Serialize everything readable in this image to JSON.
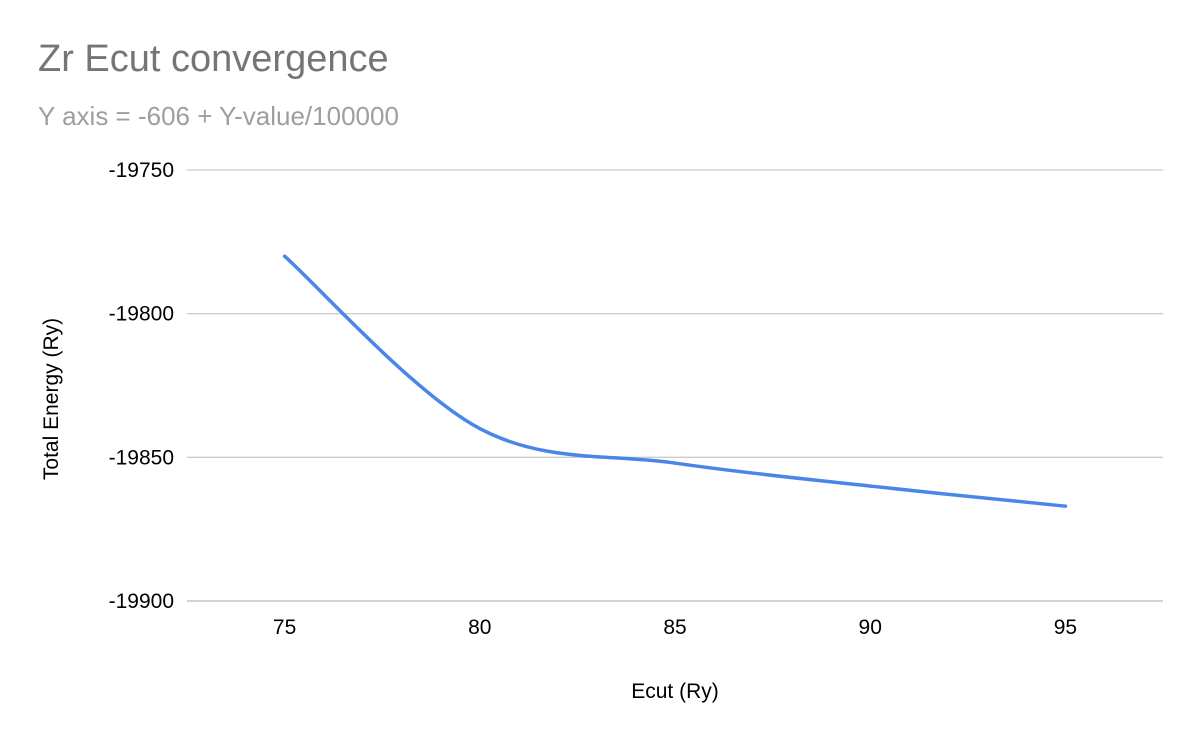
{
  "chart_data": {
    "type": "line",
    "title": "Zr Ecut convergence",
    "subtitle": "Y axis = -606 + Y-value/100000",
    "xlabel": "Ecut (Ry)",
    "ylabel": "Total Energy (Ry)",
    "xlim": [
      72.5,
      97.5
    ],
    "ylim": [
      -19900,
      -19750
    ],
    "x_ticks": [
      75,
      80,
      85,
      90,
      95
    ],
    "y_ticks": [
      -19750,
      -19800,
      -19850,
      -19900
    ],
    "grid": true,
    "legend": "none",
    "series": [
      {
        "color": "#4a86e8",
        "x": [
          75,
          80,
          85,
          90,
          95
        ],
        "y": [
          -19780,
          -19840,
          -19852,
          -19860,
          -19867
        ]
      }
    ]
  }
}
